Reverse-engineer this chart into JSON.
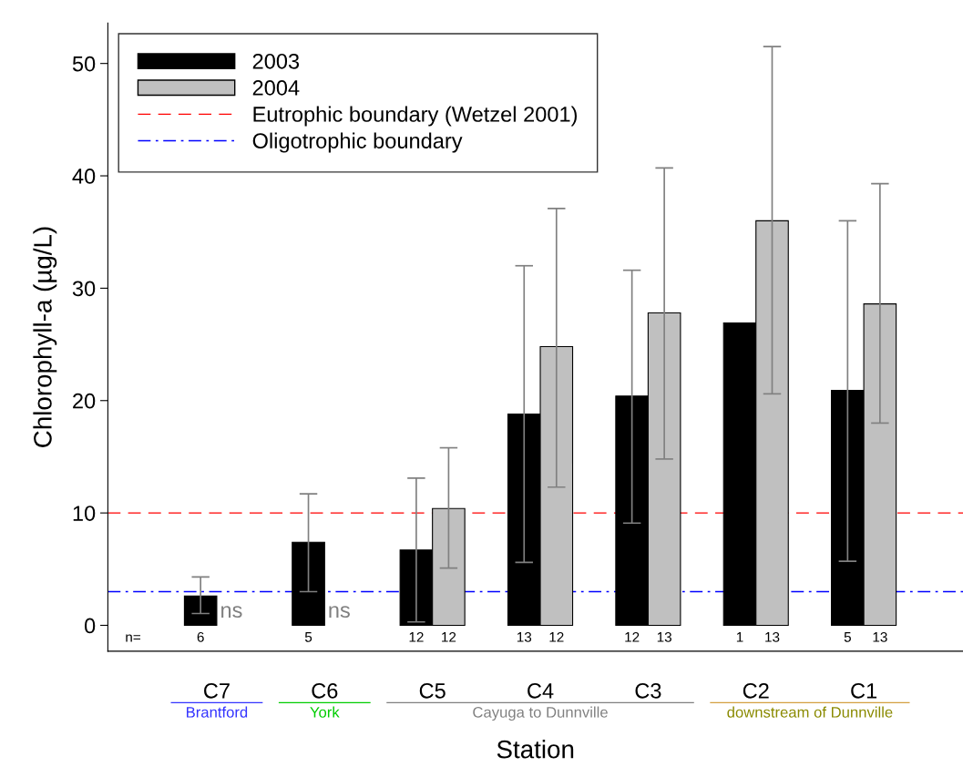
{
  "chart_data": {
    "type": "bar",
    "xlabel": "Station",
    "ylabel": "Chlorophyll-a (µg/L)",
    "categories": [
      "C7",
      "C6",
      "C5",
      "C4",
      "C3",
      "C2",
      "C1"
    ],
    "series": [
      {
        "name": "2003",
        "color": "#000000",
        "values": [
          2.6,
          7.4,
          6.7,
          18.8,
          20.4,
          26.9,
          20.9
        ],
        "errors": [
          [
            1.05,
            4.3
          ],
          [
            3.0,
            11.7
          ],
          [
            0.3,
            13.1
          ],
          [
            5.6,
            32.0
          ],
          [
            9.1,
            31.6
          ],
          null,
          [
            5.7,
            36.0
          ]
        ]
      },
      {
        "name": "2004",
        "color": "#c0c0c0",
        "values": [
          null,
          null,
          10.4,
          24.8,
          27.8,
          36.0,
          28.6
        ],
        "errors": [
          null,
          null,
          [
            5.1,
            15.8
          ],
          [
            12.3,
            37.1
          ],
          [
            14.8,
            40.7
          ],
          [
            20.6,
            51.5
          ],
          [
            18.0,
            39.3
          ]
        ]
      }
    ],
    "ylim": [
      -2.3,
      53.6
    ],
    "yticks": [
      0,
      10,
      20,
      30,
      40,
      50
    ],
    "ref_lines": [
      {
        "axis": "y",
        "value": 10,
        "label": "Eutrophic boundary (Wetzel 2001)",
        "color": "#ff0000",
        "line_style": "dashed"
      },
      {
        "axis": "y",
        "value": 3,
        "label": "Oligotrophic boundary",
        "color": "#0000ff",
        "line_style": "dashdot"
      }
    ],
    "legend": "top left",
    "grid": false,
    "annotations": [
      "ns",
      "ns",
      "n=",
      "6",
      "5",
      "12",
      "12",
      "13",
      "12",
      "12",
      "13",
      "1",
      "13",
      "5",
      "13",
      "Brantford",
      "York",
      "Cayuga to Dunnville",
      "downstream of Dunnville"
    ]
  }
}
